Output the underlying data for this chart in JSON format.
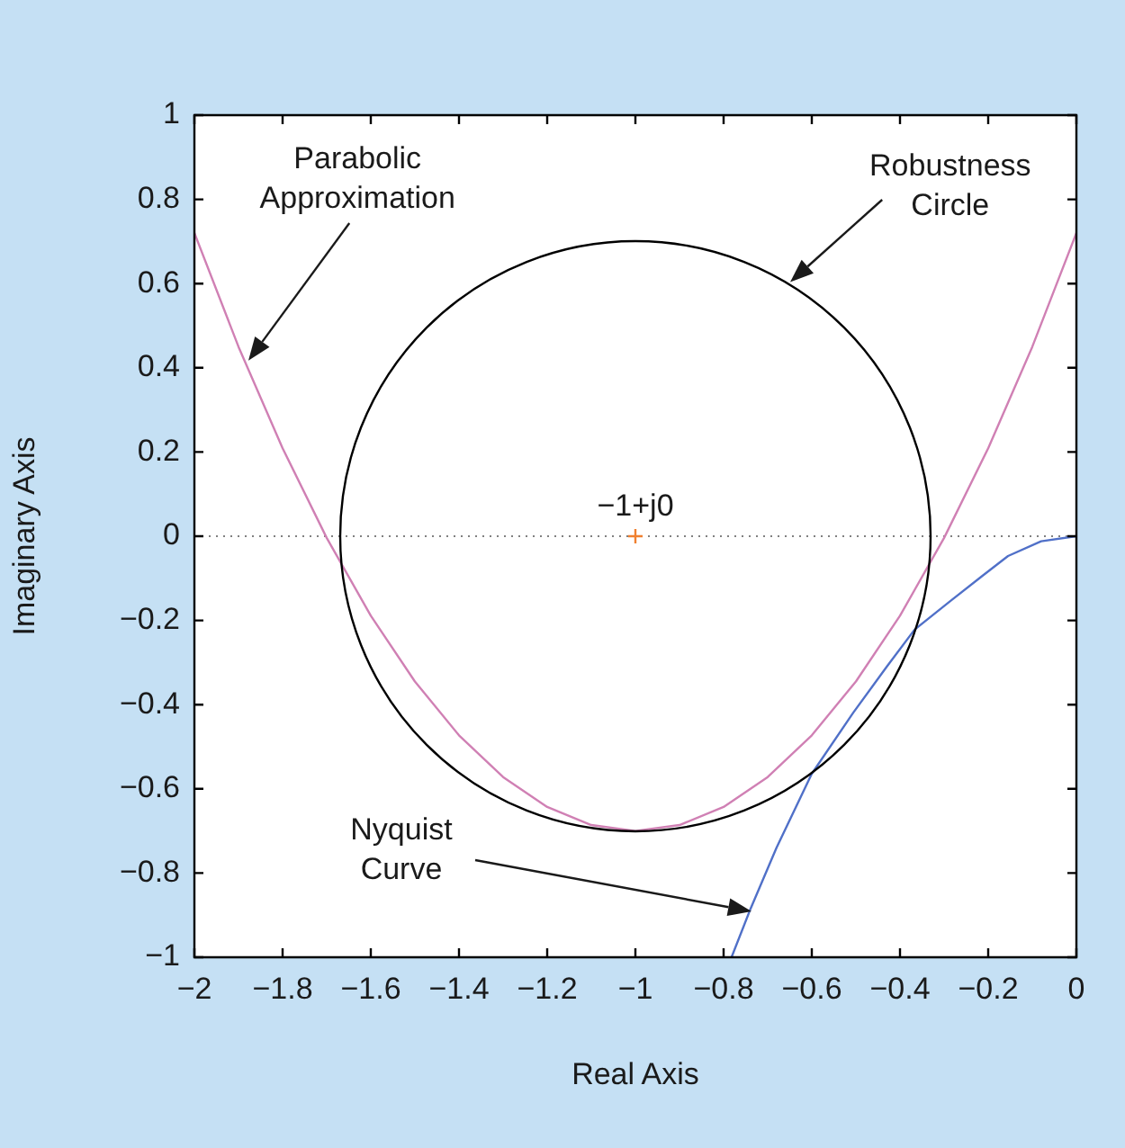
{
  "chart_data": {
    "type": "line",
    "xlabel": "Real Axis",
    "ylabel": "Imaginary Axis",
    "xlim": [
      -2,
      0
    ],
    "ylim": [
      -1,
      1
    ],
    "xticks": [
      -2,
      -1.8,
      -1.6,
      -1.4,
      -1.2,
      -1,
      -0.8,
      -0.6,
      -0.4,
      -0.2,
      0
    ],
    "yticks": [
      -1,
      -0.8,
      -0.6,
      -0.4,
      -0.2,
      0,
      0.2,
      0.4,
      0.6,
      0.8,
      1
    ],
    "grid": false,
    "legend": false,
    "marker": "none",
    "line_style": "solid",
    "ref_lines": [
      {
        "axis": "y",
        "value": 0,
        "color": "#808080",
        "line_style": "dotted"
      }
    ],
    "series": [
      {
        "color": "#d080b4",
        "x": [
          -2,
          -1.9,
          -1.8,
          -1.7,
          -1.6,
          -1.5,
          -1.4,
          -1.3,
          -1.2,
          -1.1,
          -1,
          -0.9,
          -0.8,
          -0.7,
          -0.6,
          -0.5,
          -0.4,
          -0.3,
          -0.2,
          -0.1,
          0
        ],
        "values": [
          0.72,
          0.45,
          0.209,
          -0.004,
          -0.189,
          -0.345,
          -0.473,
          -0.572,
          -0.643,
          -0.686,
          -0.7,
          -0.686,
          -0.643,
          -0.572,
          -0.473,
          -0.345,
          -0.189,
          -0.004,
          0.209,
          0.45,
          0.72
        ]
      },
      {
        "color": "#5070c8",
        "x": [
          -0.782,
          -0.739,
          -0.68,
          -0.6,
          -0.506,
          -0.43,
          -0.367,
          -0.286,
          -0.213,
          -0.155,
          -0.08,
          0
        ],
        "values": [
          -1,
          -0.885,
          -0.74,
          -0.564,
          -0.419,
          -0.31,
          -0.222,
          -0.154,
          -0.094,
          -0.047,
          -0.012,
          0
        ]
      },
      {
        "type": "scatter",
        "marker": "cross",
        "color": "#f08030",
        "x": [
          -1
        ],
        "values": [
          0
        ]
      }
    ],
    "annotations": [
      "Parabolic\nApproximation",
      "Robustness\nCircle",
      "Nyquist\nCurve",
      {
        "text": "−1+j0",
        "x": -1,
        "y": 0
      }
    ]
  }
}
